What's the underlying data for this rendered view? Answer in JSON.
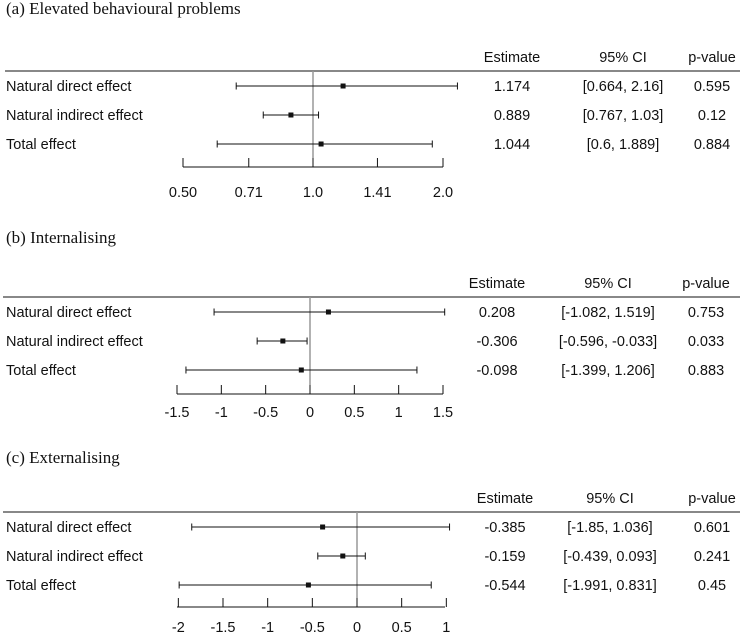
{
  "chart_data": [
    {
      "type": "forest",
      "title": "(a)  Elevated behavioural problems",
      "scale": "log",
      "reference_value": 1.0,
      "axis_ticks": [
        0.5,
        0.71,
        1.0,
        1.41,
        2.0
      ],
      "axis_tick_labels": [
        "0.50",
        "0.71",
        "1.0",
        "1.41",
        "2.0"
      ],
      "columns": [
        "Estimate",
        "95% CI",
        "p-value"
      ],
      "rows": [
        {
          "label": "Natural direct effect",
          "estimate": 1.174,
          "lower": 0.664,
          "upper": 2.16,
          "estimate_text": "1.174",
          "ci_text": "[0.664, 2.16]",
          "p_text": "0.595"
        },
        {
          "label": "Natural indirect effect",
          "estimate": 0.889,
          "lower": 0.767,
          "upper": 1.03,
          "estimate_text": "0.889",
          "ci_text": "[0.767, 1.03]",
          "p_text": "0.12"
        },
        {
          "label": "Total effect",
          "estimate": 1.044,
          "lower": 0.6,
          "upper": 1.889,
          "estimate_text": "1.044",
          "ci_text": "[0.6, 1.889]",
          "p_text": "0.884"
        }
      ]
    },
    {
      "type": "forest",
      "title": "(b) Internalising",
      "scale": "linear",
      "reference_value": 0,
      "axis_ticks": [
        -1.5,
        -1,
        -0.5,
        0,
        0.5,
        1,
        1.5
      ],
      "axis_tick_labels": [
        "-1.5",
        "-1",
        "-0.5",
        "0",
        "0.5",
        "1",
        "1.5"
      ],
      "columns": [
        "Estimate",
        "95% CI",
        "p-value"
      ],
      "rows": [
        {
          "label": "Natural direct effect",
          "estimate": 0.208,
          "lower": -1.082,
          "upper": 1.519,
          "estimate_text": "0.208",
          "ci_text": "[-1.082, 1.519]",
          "p_text": "0.753"
        },
        {
          "label": "Natural indirect effect",
          "estimate": -0.306,
          "lower": -0.596,
          "upper": -0.033,
          "estimate_text": "-0.306",
          "ci_text": "[-0.596, -0.033]",
          "p_text": "0.033"
        },
        {
          "label": "Total effect",
          "estimate": -0.098,
          "lower": -1.399,
          "upper": 1.206,
          "estimate_text": "-0.098",
          "ci_text": "[-1.399, 1.206]",
          "p_text": "0.883"
        }
      ]
    },
    {
      "type": "forest",
      "title": "(c) Externalising",
      "scale": "linear",
      "reference_value": 0,
      "axis_ticks": [
        -2,
        -1.5,
        -1,
        -0.5,
        0,
        0.5,
        1
      ],
      "axis_tick_labels": [
        "-2",
        "-1.5",
        "-1",
        "-0.5",
        "0",
        "0.5",
        "1"
      ],
      "columns": [
        "Estimate",
        "95% CI",
        "p-value"
      ],
      "rows": [
        {
          "label": "Natural direct effect",
          "estimate": -0.385,
          "lower": -1.85,
          "upper": 1.036,
          "estimate_text": "-0.385",
          "ci_text": "[-1.85, 1.036]",
          "p_text": "0.601"
        },
        {
          "label": "Natural indirect effect",
          "estimate": -0.159,
          "lower": -0.439,
          "upper": 0.093,
          "estimate_text": "-0.159",
          "ci_text": "[-0.439, 0.093]",
          "p_text": "0.241"
        },
        {
          "label": "Total effect",
          "estimate": -0.544,
          "lower": -1.991,
          "upper": 0.831,
          "estimate_text": "-0.544",
          "ci_text": "[-1.991, 0.831]",
          "p_text": "0.45"
        }
      ]
    }
  ]
}
